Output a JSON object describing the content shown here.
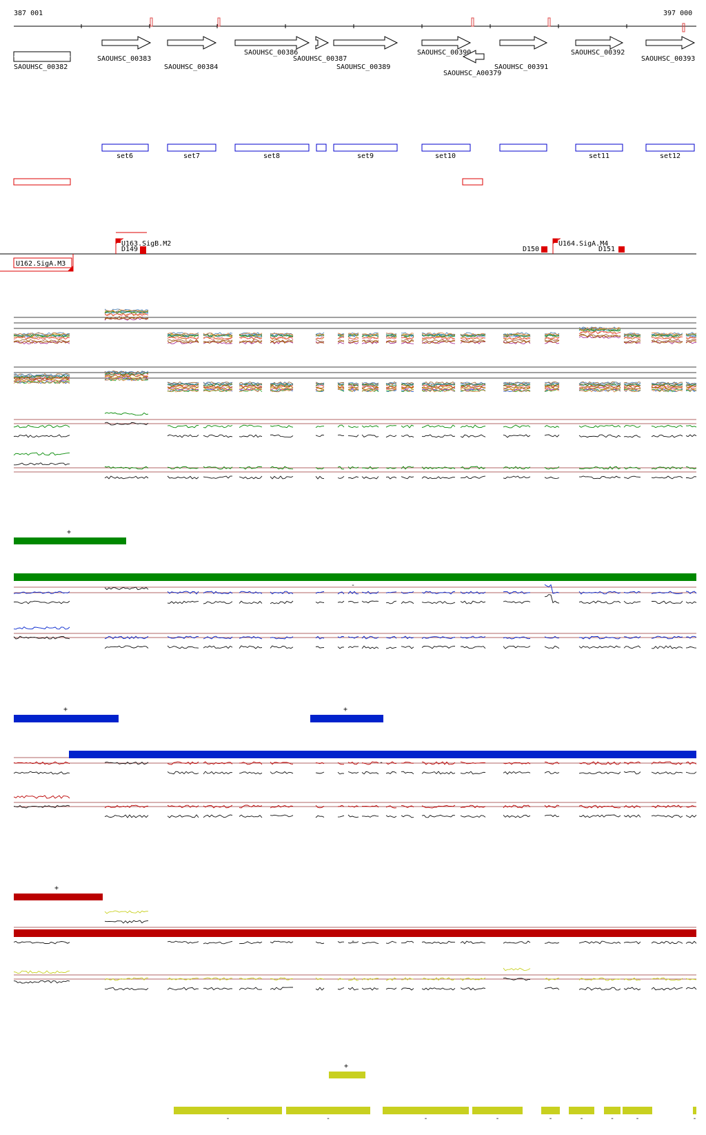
{
  "coords": {
    "start": "387 001",
    "end": "397 000"
  },
  "genes": [
    {
      "label": "SAOUHSC_00382",
      "strand": "none"
    },
    {
      "label": "SAOUHSC_00383",
      "strand": "+"
    },
    {
      "label": "SAOUHSC_00384",
      "strand": "+"
    },
    {
      "label": "SAOUHSC_00386",
      "strand": "+"
    },
    {
      "label": "SAOUHSC_00387",
      "strand": "+"
    },
    {
      "label": "SAOUHSC_00389",
      "strand": "+"
    },
    {
      "label": "SAOUHSC_00390",
      "strand": "+"
    },
    {
      "label": "SAOUHSC_A00379",
      "strand": "-"
    },
    {
      "label": "SAOUHSC_00391",
      "strand": "+"
    },
    {
      "label": "SAOUHSC_00392",
      "strand": "+"
    },
    {
      "label": "SAOUHSC_00393",
      "strand": "+"
    }
  ],
  "sets": [
    "set6",
    "set7",
    "set8",
    "set9",
    "set10",
    "set11",
    "set12"
  ],
  "features": {
    "promoters": [
      "U163.SigB.M2",
      "U162.SigA.M3",
      "U164.SigA.M4"
    ],
    "terminators": [
      "D149",
      "D150",
      "D151"
    ]
  },
  "segments": {
    "plus_label": "+",
    "minus_label": "-"
  },
  "colors": {
    "green": "#008800",
    "blue": "#0022cc",
    "red": "#bb0000",
    "yellow": "#c8d020",
    "gene": "#000000",
    "set": "#0000cc",
    "region": "#dd0000"
  }
}
